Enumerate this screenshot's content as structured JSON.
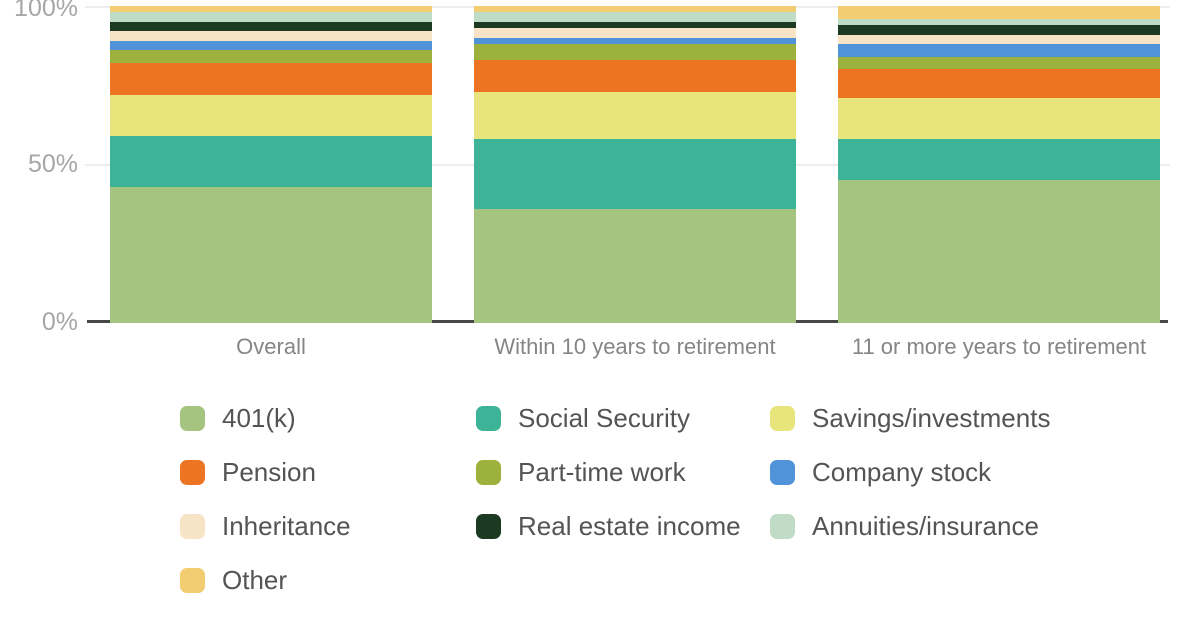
{
  "chart_data": {
    "type": "bar",
    "stacked": true,
    "percent_stacked": true,
    "title": "",
    "categories": [
      "Overall",
      "Within 10 years to retirement",
      "11 or more years to retirement"
    ],
    "series": [
      {
        "name": "401(k)",
        "color": "#a5c47f",
        "values": [
          43,
          36,
          45
        ]
      },
      {
        "name": "Social Security",
        "color": "#3db497",
        "values": [
          16,
          22,
          13
        ]
      },
      {
        "name": "Savings/investments",
        "color": "#e7e57b",
        "values": [
          13,
          15,
          13
        ]
      },
      {
        "name": "Pension",
        "color": "#ec7423",
        "values": [
          10,
          10,
          9
        ]
      },
      {
        "name": "Part-time work",
        "color": "#9cb23c",
        "values": [
          4,
          5,
          4
        ]
      },
      {
        "name": "Company stock",
        "color": "#5193d8",
        "values": [
          3,
          2,
          4
        ]
      },
      {
        "name": "Inheritance",
        "color": "#f7e3c6",
        "values": [
          3,
          3,
          3
        ]
      },
      {
        "name": "Real estate income",
        "color": "#1c3a22",
        "values": [
          3,
          2,
          3
        ]
      },
      {
        "name": "Annuities/insurance",
        "color": "#c0dcc6",
        "values": [
          3,
          3,
          2
        ]
      },
      {
        "name": "Other",
        "color": "#f2cd72",
        "values": [
          2,
          2,
          4
        ]
      }
    ],
    "y_axis": {
      "ticks": [
        "100%",
        "50%",
        "0%"
      ],
      "min": 0,
      "max": 100,
      "unit": "%",
      "grid": true
    },
    "legend_position": "bottom",
    "colors": {
      "grid": "#ededed",
      "axis_line": "#474747",
      "y_tick_text": "#a6a6a6",
      "x_tick_text": "#858585",
      "legend_text": "#545454",
      "background": "#ffffff"
    }
  }
}
